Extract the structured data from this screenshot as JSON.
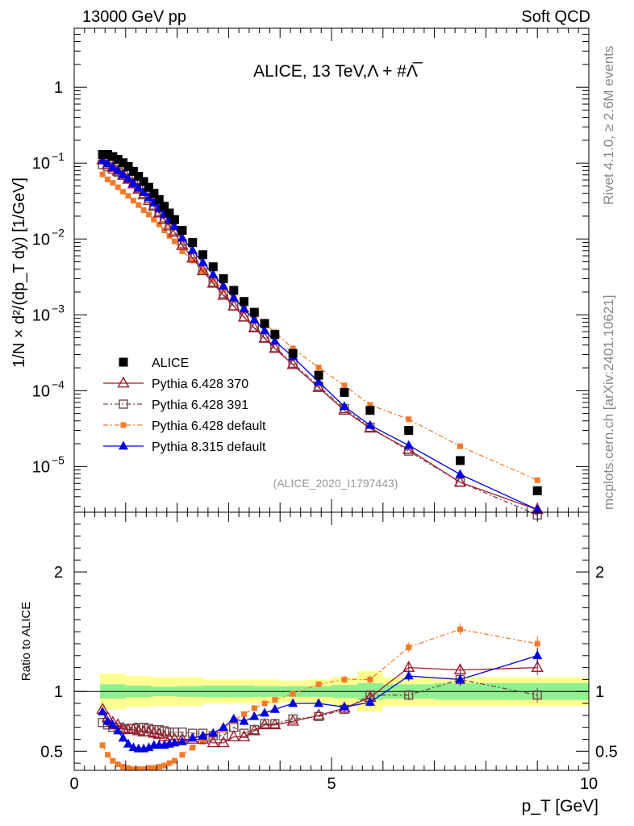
{
  "header": {
    "left": "13000 GeV pp",
    "right": "Soft QCD"
  },
  "side_text": {
    "rivet": "Rivet 4.1.0, ≥ 2.6M events",
    "mcplots": "mcplots.cern.ch [arXiv:2401.10621]"
  },
  "colors": {
    "alice": "#000000",
    "p370": "#9b1c2c",
    "p391": "#6e4a4a",
    "p6def": "#f47a2a",
    "p8": "#0000e0",
    "band_green": "#90f090",
    "band_yellow": "#ffff90"
  },
  "chart_data": [
    {
      "type": "scatter",
      "panel": "main",
      "title": "ALICE, 13 TeV,Λ + #Λ̅",
      "analysis_tag": "(ALICE_2020_I1797443)",
      "ylabel": "1/N × d²/(dp_T dy) [1/GeV]",
      "yscale": "log",
      "ylim": [
        2.5e-06,
        6
      ],
      "xlim": [
        0,
        10
      ],
      "ytick_labels": [
        {
          "value": 1,
          "label": "1"
        },
        {
          "value": 0.1,
          "label": "10",
          "exp": "−1"
        },
        {
          "value": 0.01,
          "label": "10",
          "exp": "−2"
        },
        {
          "value": 0.001,
          "label": "10",
          "exp": "−3"
        },
        {
          "value": 0.0001,
          "label": "10",
          "exp": "−4"
        },
        {
          "value": 1e-05,
          "label": "10",
          "exp": "−5"
        }
      ],
      "legend": [
        {
          "id": "alice",
          "label": "ALICE"
        },
        {
          "id": "p370",
          "label": "Pythia 6.428 370"
        },
        {
          "id": "p391",
          "label": "Pythia 6.428 391"
        },
        {
          "id": "p6def",
          "label": "Pythia 6.428 default"
        },
        {
          "id": "p8",
          "label": "Pythia 8.315 default"
        }
      ],
      "x": [
        0.55,
        0.65,
        0.75,
        0.85,
        0.95,
        1.05,
        1.15,
        1.25,
        1.35,
        1.45,
        1.55,
        1.65,
        1.75,
        1.85,
        1.95,
        2.1,
        2.3,
        2.5,
        2.7,
        2.9,
        3.1,
        3.3,
        3.5,
        3.7,
        3.9,
        4.25,
        4.75,
        5.25,
        5.75,
        6.5,
        7.5,
        9.0
      ],
      "series": [
        {
          "id": "alice",
          "name": "ALICE",
          "values": [
            0.13,
            0.13,
            0.122,
            0.112,
            0.101,
            0.09,
            0.078,
            0.067,
            0.057,
            0.048,
            0.04,
            0.033,
            0.027,
            0.022,
            0.018,
            0.013,
            0.009,
            0.0062,
            0.0043,
            0.003,
            0.0021,
            0.0015,
            0.00108,
            0.00077,
            0.00055,
            0.00031,
            0.00016,
            9.5e-05,
            5.5e-05,
            3e-05,
            1.2e-05,
            4.8e-06
          ]
        },
        {
          "id": "p370",
          "name": "Pythia 6.428 370",
          "values": [
            0.11,
            0.095,
            0.087,
            0.078,
            0.069,
            0.061,
            0.053,
            0.045,
            0.038,
            0.032,
            0.027,
            0.022,
            0.018,
            0.0148,
            0.0122,
            0.0082,
            0.0056,
            0.0038,
            0.0026,
            0.0018,
            0.0013,
            0.00093,
            0.00067,
            0.00049,
            0.00036,
            0.00022,
            0.00011,
            5.5e-05,
            3.2e-05,
            1.68e-05,
            6.2e-06,
            2.7e-06
          ]
        },
        {
          "id": "p391",
          "name": "Pythia 6.428 391",
          "values": [
            0.096,
            0.09,
            0.083,
            0.076,
            0.069,
            0.062,
            0.055,
            0.047,
            0.04,
            0.034,
            0.028,
            0.023,
            0.019,
            0.0157,
            0.0129,
            0.0087,
            0.0059,
            0.004,
            0.0027,
            0.0019,
            0.00132,
            0.00094,
            0.00069,
            0.0005,
            0.00037,
            0.00023,
            0.000115,
            5.8e-05,
            3.3e-05,
            1.6e-05,
            6.2e-06,
            2.3e-06
          ]
        },
        {
          "id": "p6def",
          "name": "Pythia 6.428 default",
          "values": [
            0.071,
            0.061,
            0.055,
            0.048,
            0.042,
            0.037,
            0.032,
            0.028,
            0.024,
            0.021,
            0.018,
            0.0155,
            0.013,
            0.011,
            0.0093,
            0.0069,
            0.0052,
            0.0038,
            0.0029,
            0.0022,
            0.00165,
            0.00127,
            0.00098,
            0.00077,
            0.00059,
            0.00036,
            0.000202,
            0.000117,
            6.5e-05,
            4.2e-05,
            1.85e-05,
            6.6e-06
          ]
        },
        {
          "id": "p8",
          "name": "Pythia 8.315 default",
          "values": [
            0.108,
            0.098,
            0.088,
            0.079,
            0.07,
            0.062,
            0.054,
            0.047,
            0.041,
            0.035,
            0.03,
            0.025,
            0.021,
            0.0176,
            0.0147,
            0.0103,
            0.0071,
            0.0049,
            0.0034,
            0.0024,
            0.00168,
            0.0012,
            0.00086,
            0.00062,
            0.00045,
            0.00028,
            0.00013,
            6.2e-05,
            3.5e-05,
            1.9e-05,
            7.9e-06,
            2.7e-06
          ]
        }
      ]
    },
    {
      "type": "line",
      "panel": "ratio",
      "ylabel": "Ratio to ALICE",
      "xlabel": "p_T [GeV]",
      "xlim": [
        0,
        10
      ],
      "ylim": [
        0.34,
        2.5
      ],
      "ytick_labels": [
        "0.5",
        "1",
        "2"
      ],
      "xtick_labels": [
        "0",
        "5",
        "10"
      ],
      "band_green": {
        "edges": [
          0.5,
          1.0,
          1.5,
          2.0,
          2.5,
          3.0,
          3.5,
          4.0,
          4.5,
          5.0,
          5.5,
          6.0,
          7.0,
          10.0
        ],
        "half": [
          0.06,
          0.05,
          0.04,
          0.045,
          0.05,
          0.05,
          0.045,
          0.045,
          0.045,
          0.055,
          0.07,
          0.06,
          0.07
        ]
      },
      "band_yellow": {
        "edges": [
          0.5,
          1.0,
          1.5,
          2.0,
          2.5,
          3.0,
          3.5,
          4.0,
          4.5,
          5.0,
          5.5,
          6.0,
          7.0,
          10.0
        ],
        "half": [
          0.15,
          0.13,
          0.12,
          0.12,
          0.1,
          0.1,
          0.1,
          0.09,
          0.1,
          0.12,
          0.17,
          0.12,
          0.12
        ]
      },
      "x": [
        0.55,
        0.65,
        0.75,
        0.85,
        0.95,
        1.05,
        1.15,
        1.25,
        1.35,
        1.45,
        1.55,
        1.65,
        1.75,
        1.85,
        1.95,
        2.1,
        2.3,
        2.5,
        2.7,
        2.9,
        3.1,
        3.3,
        3.5,
        3.7,
        3.9,
        4.25,
        4.75,
        5.25,
        5.75,
        6.5,
        7.5,
        9.0
      ],
      "series": [
        {
          "id": "p370",
          "values": [
            0.85,
            0.78,
            0.74,
            0.72,
            0.69,
            0.68,
            0.68,
            0.67,
            0.66,
            0.66,
            0.65,
            0.64,
            0.62,
            0.6,
            0.6,
            0.6,
            0.6,
            0.6,
            0.57,
            0.57,
            0.62,
            0.62,
            0.67,
            0.72,
            0.72,
            0.75,
            0.8,
            0.86,
            0.95,
            1.2,
            1.18,
            1.2
          ]
        },
        {
          "id": "p391",
          "values": [
            0.74,
            0.72,
            0.7,
            0.7,
            0.68,
            0.69,
            0.69,
            0.7,
            0.7,
            0.69,
            0.68,
            0.68,
            0.67,
            0.66,
            0.66,
            0.66,
            0.65,
            0.65,
            0.63,
            0.63,
            0.7,
            0.65,
            0.68,
            0.73,
            0.73,
            0.77,
            0.79,
            0.85,
            0.97,
            0.97,
            1.1,
            0.97
          ]
        },
        {
          "id": "p6def",
          "values": [
            0.55,
            0.47,
            0.42,
            0.39,
            0.37,
            0.36,
            0.35,
            0.35,
            0.35,
            0.36,
            0.36,
            0.37,
            0.38,
            0.4,
            0.42,
            0.47,
            0.53,
            0.58,
            0.63,
            0.68,
            0.76,
            0.81,
            0.86,
            0.9,
            0.93,
            0.98,
            1.06,
            1.1,
            1.1,
            1.37,
            1.52,
            1.4
          ]
        },
        {
          "id": "p8",
          "values": [
            0.83,
            0.75,
            0.72,
            0.67,
            0.61,
            0.56,
            0.53,
            0.52,
            0.52,
            0.53,
            0.55,
            0.55,
            0.55,
            0.56,
            0.57,
            0.58,
            0.61,
            0.63,
            0.65,
            0.7,
            0.77,
            0.75,
            0.79,
            0.82,
            0.85,
            0.9,
            0.9,
            0.87,
            0.91,
            1.13,
            1.1,
            1.3
          ]
        }
      ]
    }
  ]
}
